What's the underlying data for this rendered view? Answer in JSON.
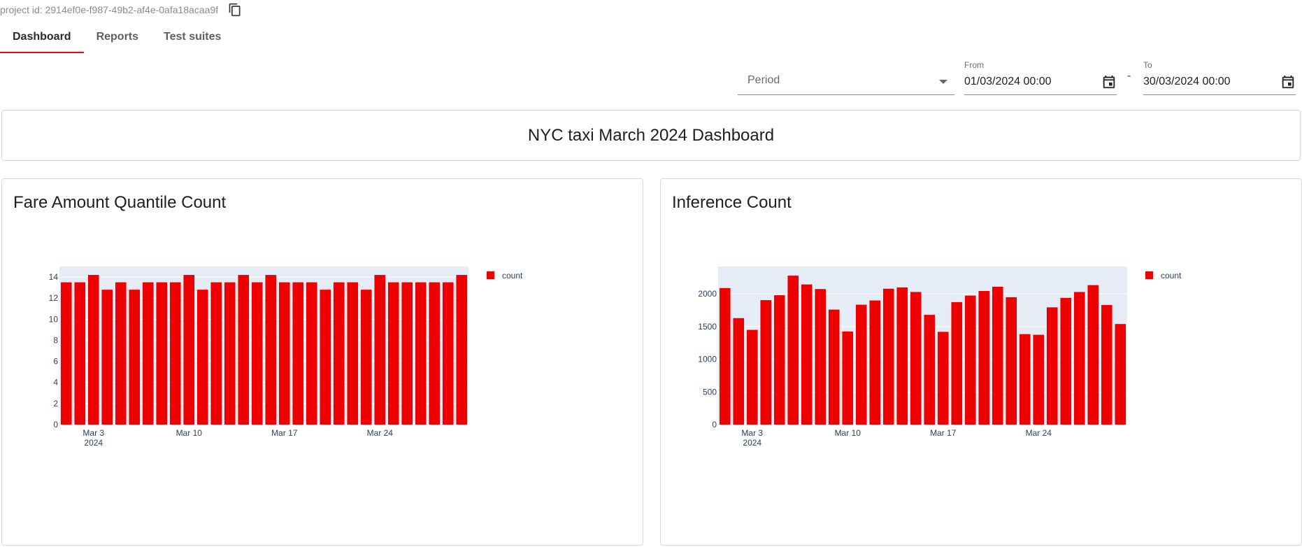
{
  "header": {
    "project_id": "project id: 2914ef0e-f987-49b2-af4e-0afa18acaa9f",
    "copy_icon": "copy-icon"
  },
  "tabs": [
    {
      "label": "Dashboard",
      "active": true
    },
    {
      "label": "Reports",
      "active": false
    },
    {
      "label": "Test suites",
      "active": false
    }
  ],
  "filters": {
    "period_label": "Period",
    "from_label": "From",
    "from_value": "01/03/2024 00:00",
    "separator": "-",
    "to_label": "To",
    "to_value": "30/03/2024 00:00",
    "calendar_icon": "calendar-icon"
  },
  "dashboard_title": "NYC taxi March 2024 Dashboard",
  "colors": {
    "accent": "#e01010",
    "bar": "#ee0000",
    "plot_bg": "#e5ecf6"
  },
  "chart_data": [
    {
      "type": "bar",
      "title": "Fare Amount Quantile Count",
      "x": [
        "2024-03-01",
        "2024-03-02",
        "2024-03-03",
        "2024-03-04",
        "2024-03-05",
        "2024-03-06",
        "2024-03-07",
        "2024-03-08",
        "2024-03-09",
        "2024-03-10",
        "2024-03-11",
        "2024-03-12",
        "2024-03-13",
        "2024-03-14",
        "2024-03-15",
        "2024-03-16",
        "2024-03-17",
        "2024-03-18",
        "2024-03-19",
        "2024-03-20",
        "2024-03-21",
        "2024-03-22",
        "2024-03-23",
        "2024-03-24",
        "2024-03-25",
        "2024-03-26",
        "2024-03-27",
        "2024-03-28",
        "2024-03-29",
        "2024-03-30"
      ],
      "series": [
        {
          "name": "count",
          "values": [
            13.5,
            13.5,
            14.2,
            12.8,
            13.5,
            12.8,
            13.5,
            13.5,
            13.5,
            14.2,
            12.8,
            13.5,
            13.5,
            14.2,
            13.5,
            14.2,
            13.5,
            13.5,
            13.5,
            12.8,
            13.5,
            13.5,
            12.8,
            14.2,
            13.5,
            13.5,
            13.5,
            13.5,
            13.5,
            14.2
          ]
        }
      ],
      "ylim": [
        0,
        15
      ],
      "yticks": [
        "0",
        "2",
        "4",
        "6",
        "8",
        "10",
        "12",
        "14"
      ],
      "xticks": [
        {
          "label": "Mar 3",
          "sub": "2024",
          "date": "2024-03-03"
        },
        {
          "label": "Mar 10",
          "sub": "",
          "date": "2024-03-10"
        },
        {
          "label": "Mar 17",
          "sub": "",
          "date": "2024-03-17"
        },
        {
          "label": "Mar 24",
          "sub": "",
          "date": "2024-03-24"
        }
      ],
      "legend": "top-right"
    },
    {
      "type": "bar",
      "title": "Inference Count",
      "x": [
        "2024-03-01",
        "2024-03-02",
        "2024-03-03",
        "2024-03-04",
        "2024-03-05",
        "2024-03-06",
        "2024-03-07",
        "2024-03-08",
        "2024-03-09",
        "2024-03-10",
        "2024-03-11",
        "2024-03-12",
        "2024-03-13",
        "2024-03-14",
        "2024-03-15",
        "2024-03-16",
        "2024-03-17",
        "2024-03-18",
        "2024-03-19",
        "2024-03-20",
        "2024-03-21",
        "2024-03-22",
        "2024-03-23",
        "2024-03-24",
        "2024-03-25",
        "2024-03-26",
        "2024-03-27",
        "2024-03-28",
        "2024-03-29",
        "2024-03-30"
      ],
      "series": [
        {
          "name": "count",
          "values": [
            2090,
            1630,
            1450,
            1905,
            1980,
            2280,
            2145,
            2075,
            1760,
            1425,
            1835,
            1900,
            2080,
            2100,
            2030,
            1680,
            1420,
            1875,
            1975,
            2045,
            2110,
            1950,
            1385,
            1375,
            1795,
            1940,
            2030,
            2135,
            1830,
            1540
          ]
        }
      ],
      "ylim": [
        0,
        2420
      ],
      "yticks": [
        "0",
        "500",
        "1000",
        "1500",
        "2000"
      ],
      "xticks": [
        {
          "label": "Mar 3",
          "sub": "2024",
          "date": "2024-03-03"
        },
        {
          "label": "Mar 10",
          "sub": "",
          "date": "2024-03-10"
        },
        {
          "label": "Mar 17",
          "sub": "",
          "date": "2024-03-17"
        },
        {
          "label": "Mar 24",
          "sub": "",
          "date": "2024-03-24"
        }
      ],
      "legend": "top-right"
    }
  ]
}
